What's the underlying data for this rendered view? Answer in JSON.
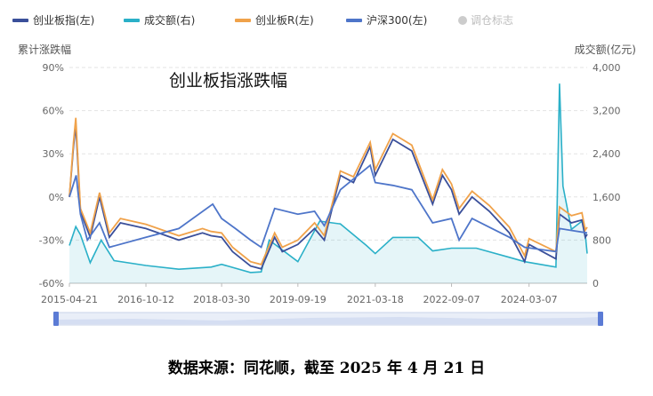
{
  "legend": [
    {
      "label": "创业板指(左)",
      "color": "#3a4f9a",
      "active": true
    },
    {
      "label": "成交额(右)",
      "color": "#2ab0c8",
      "active": true
    },
    {
      "label": "创业板R(左)",
      "color": "#f0a24a",
      "active": true
    },
    {
      "label": "沪深300(左)",
      "color": "#4e75c9",
      "active": true
    },
    {
      "label": "调仓标志",
      "color": "#cccccc",
      "active": false
    }
  ],
  "chart_data": {
    "type": "line",
    "title": "创业板指涨跌幅",
    "ylabel_left": "累计涨跌幅",
    "ylabel_right": "成交额(亿元)",
    "yleft_ticks": [
      "90%",
      "60%",
      "30%",
      "0%",
      "-30%",
      "-60%"
    ],
    "yleft_range": [
      -60,
      90
    ],
    "yright_ticks": [
      "4,000",
      "3,200",
      "2,400",
      "1,600",
      "800",
      "0"
    ],
    "yright_range": [
      0,
      4000
    ],
    "x_ticks": [
      "2015-04-21",
      "2016-10-12",
      "2018-03-30",
      "2019-09-19",
      "2021-03-18",
      "2022-09-07",
      "2024-03-07"
    ],
    "x_range": [
      "2015-04-21",
      "2025-04-21"
    ],
    "series": [
      {
        "name": "创业板指(左)",
        "axis": "left",
        "color": "#3a4f9a",
        "points": [
          [
            "2015-04-21",
            0
          ],
          [
            "2015-05-20",
            35
          ],
          [
            "2015-06-05",
            50
          ],
          [
            "2015-07-08",
            -10
          ],
          [
            "2015-09-15",
            -28
          ],
          [
            "2015-11-20",
            0
          ],
          [
            "2016-01-28",
            -28
          ],
          [
            "2016-04-15",
            -18
          ],
          [
            "2016-10-12",
            -22
          ],
          [
            "2017-06-01",
            -30
          ],
          [
            "2017-11-15",
            -25
          ],
          [
            "2018-01-15",
            -27
          ],
          [
            "2018-03-30",
            -28
          ],
          [
            "2018-06-15",
            -38
          ],
          [
            "2018-10-20",
            -48
          ],
          [
            "2019-01-03",
            -50
          ],
          [
            "2019-04-08",
            -28
          ],
          [
            "2019-06-01",
            -38
          ],
          [
            "2019-09-19",
            -33
          ],
          [
            "2020-01-15",
            -22
          ],
          [
            "2020-03-23",
            -30
          ],
          [
            "2020-07-15",
            15
          ],
          [
            "2020-10-15",
            10
          ],
          [
            "2021-02-10",
            35
          ],
          [
            "2021-03-18",
            15
          ],
          [
            "2021-07-20",
            40
          ],
          [
            "2021-12-01",
            32
          ],
          [
            "2022-04-27",
            -5
          ],
          [
            "2022-07-05",
            15
          ],
          [
            "2022-09-07",
            5
          ],
          [
            "2022-10-31",
            -12
          ],
          [
            "2023-01-30",
            0
          ],
          [
            "2023-06-01",
            -10
          ],
          [
            "2023-10-20",
            -25
          ],
          [
            "2024-02-05",
            -45
          ],
          [
            "2024-03-07",
            -33
          ],
          [
            "2024-09-13",
            -43
          ],
          [
            "2024-10-08",
            -12
          ],
          [
            "2024-12-31",
            -18
          ],
          [
            "2025-03-15",
            -16
          ],
          [
            "2025-04-08",
            -28
          ],
          [
            "2025-04-21",
            -26
          ]
        ]
      },
      {
        "name": "创业板R(左)",
        "axis": "left",
        "color": "#f0a24a",
        "points": [
          [
            "2015-04-21",
            0
          ],
          [
            "2015-05-20",
            38
          ],
          [
            "2015-06-05",
            55
          ],
          [
            "2015-07-08",
            -8
          ],
          [
            "2015-09-15",
            -25
          ],
          [
            "2015-11-20",
            3
          ],
          [
            "2016-01-28",
            -25
          ],
          [
            "2016-04-15",
            -15
          ],
          [
            "2016-10-12",
            -19
          ],
          [
            "2017-06-01",
            -27
          ],
          [
            "2017-11-15",
            -22
          ],
          [
            "2018-01-15",
            -24
          ],
          [
            "2018-03-30",
            -25
          ],
          [
            "2018-06-15",
            -35
          ],
          [
            "2018-10-20",
            -45
          ],
          [
            "2019-01-03",
            -47
          ],
          [
            "2019-04-08",
            -25
          ],
          [
            "2019-06-01",
            -35
          ],
          [
            "2019-09-19",
            -30
          ],
          [
            "2020-01-15",
            -18
          ],
          [
            "2020-03-23",
            -27
          ],
          [
            "2020-07-15",
            18
          ],
          [
            "2020-10-15",
            14
          ],
          [
            "2021-02-10",
            38
          ],
          [
            "2021-03-18",
            19
          ],
          [
            "2021-07-20",
            44
          ],
          [
            "2021-12-01",
            36
          ],
          [
            "2022-04-27",
            -2
          ],
          [
            "2022-07-05",
            19
          ],
          [
            "2022-09-07",
            9
          ],
          [
            "2022-10-31",
            -8
          ],
          [
            "2023-01-30",
            4
          ],
          [
            "2023-06-01",
            -6
          ],
          [
            "2023-10-20",
            -21
          ],
          [
            "2024-02-05",
            -41
          ],
          [
            "2024-03-07",
            -29
          ],
          [
            "2024-09-13",
            -38
          ],
          [
            "2024-10-08",
            -7
          ],
          [
            "2024-12-31",
            -13
          ],
          [
            "2025-03-15",
            -11
          ],
          [
            "2025-04-08",
            -23
          ],
          [
            "2025-04-21",
            -21
          ]
        ]
      },
      {
        "name": "沪深300(左)",
        "axis": "left",
        "color": "#4e75c9",
        "points": [
          [
            "2015-04-21",
            0
          ],
          [
            "2015-06-08",
            15
          ],
          [
            "2015-07-08",
            -12
          ],
          [
            "2015-08-26",
            -30
          ],
          [
            "2015-11-20",
            -18
          ],
          [
            "2016-01-28",
            -35
          ],
          [
            "2016-10-12",
            -28
          ],
          [
            "2017-06-01",
            -22
          ],
          [
            "2018-01-26",
            -5
          ],
          [
            "2018-03-30",
            -15
          ],
          [
            "2018-07-05",
            -22
          ],
          [
            "2018-10-20",
            -30
          ],
          [
            "2019-01-03",
            -35
          ],
          [
            "2019-04-08",
            -8
          ],
          [
            "2019-09-19",
            -12
          ],
          [
            "2020-01-15",
            -10
          ],
          [
            "2020-03-23",
            -20
          ],
          [
            "2020-07-15",
            5
          ],
          [
            "2021-02-10",
            22
          ],
          [
            "2021-03-18",
            10
          ],
          [
            "2021-07-20",
            8
          ],
          [
            "2021-12-01",
            5
          ],
          [
            "2022-04-27",
            -18
          ],
          [
            "2022-09-07",
            -15
          ],
          [
            "2022-10-31",
            -30
          ],
          [
            "2023-01-30",
            -15
          ],
          [
            "2023-10-20",
            -28
          ],
          [
            "2024-02-05",
            -35
          ],
          [
            "2024-09-13",
            -38
          ],
          [
            "2024-10-08",
            -22
          ],
          [
            "2025-04-21",
            -25
          ]
        ]
      },
      {
        "name": "成交额(右)",
        "axis": "right",
        "type": "area",
        "color": "#2ab0c8",
        "points": [
          [
            "2015-04-21",
            700
          ],
          [
            "2015-06-05",
            1050
          ],
          [
            "2015-07-08",
            900
          ],
          [
            "2015-09-15",
            380
          ],
          [
            "2015-12-01",
            800
          ],
          [
            "2016-03-01",
            420
          ],
          [
            "2016-10-12",
            330
          ],
          [
            "2017-06-01",
            260
          ],
          [
            "2018-01-15",
            300
          ],
          [
            "2018-03-30",
            350
          ],
          [
            "2018-10-20",
            200
          ],
          [
            "2019-01-03",
            210
          ],
          [
            "2019-03-01",
            800
          ],
          [
            "2019-09-19",
            400
          ],
          [
            "2020-02-20",
            1150
          ],
          [
            "2020-07-15",
            1100
          ],
          [
            "2021-01-15",
            700
          ],
          [
            "2021-03-18",
            550
          ],
          [
            "2021-07-20",
            850
          ],
          [
            "2022-01-15",
            850
          ],
          [
            "2022-04-27",
            600
          ],
          [
            "2022-09-07",
            650
          ],
          [
            "2023-03-01",
            650
          ],
          [
            "2023-10-20",
            480
          ],
          [
            "2024-02-05",
            400
          ],
          [
            "2024-09-13",
            300
          ],
          [
            "2024-10-08",
            3700
          ],
          [
            "2024-11-01",
            1800
          ],
          [
            "2024-12-31",
            1000
          ],
          [
            "2025-03-15",
            1150
          ],
          [
            "2025-04-08",
            900
          ],
          [
            "2025-04-21",
            550
          ]
        ]
      }
    ]
  },
  "source_note": "数据来源：同花顺，截至 2025 年 4 月 21 日"
}
